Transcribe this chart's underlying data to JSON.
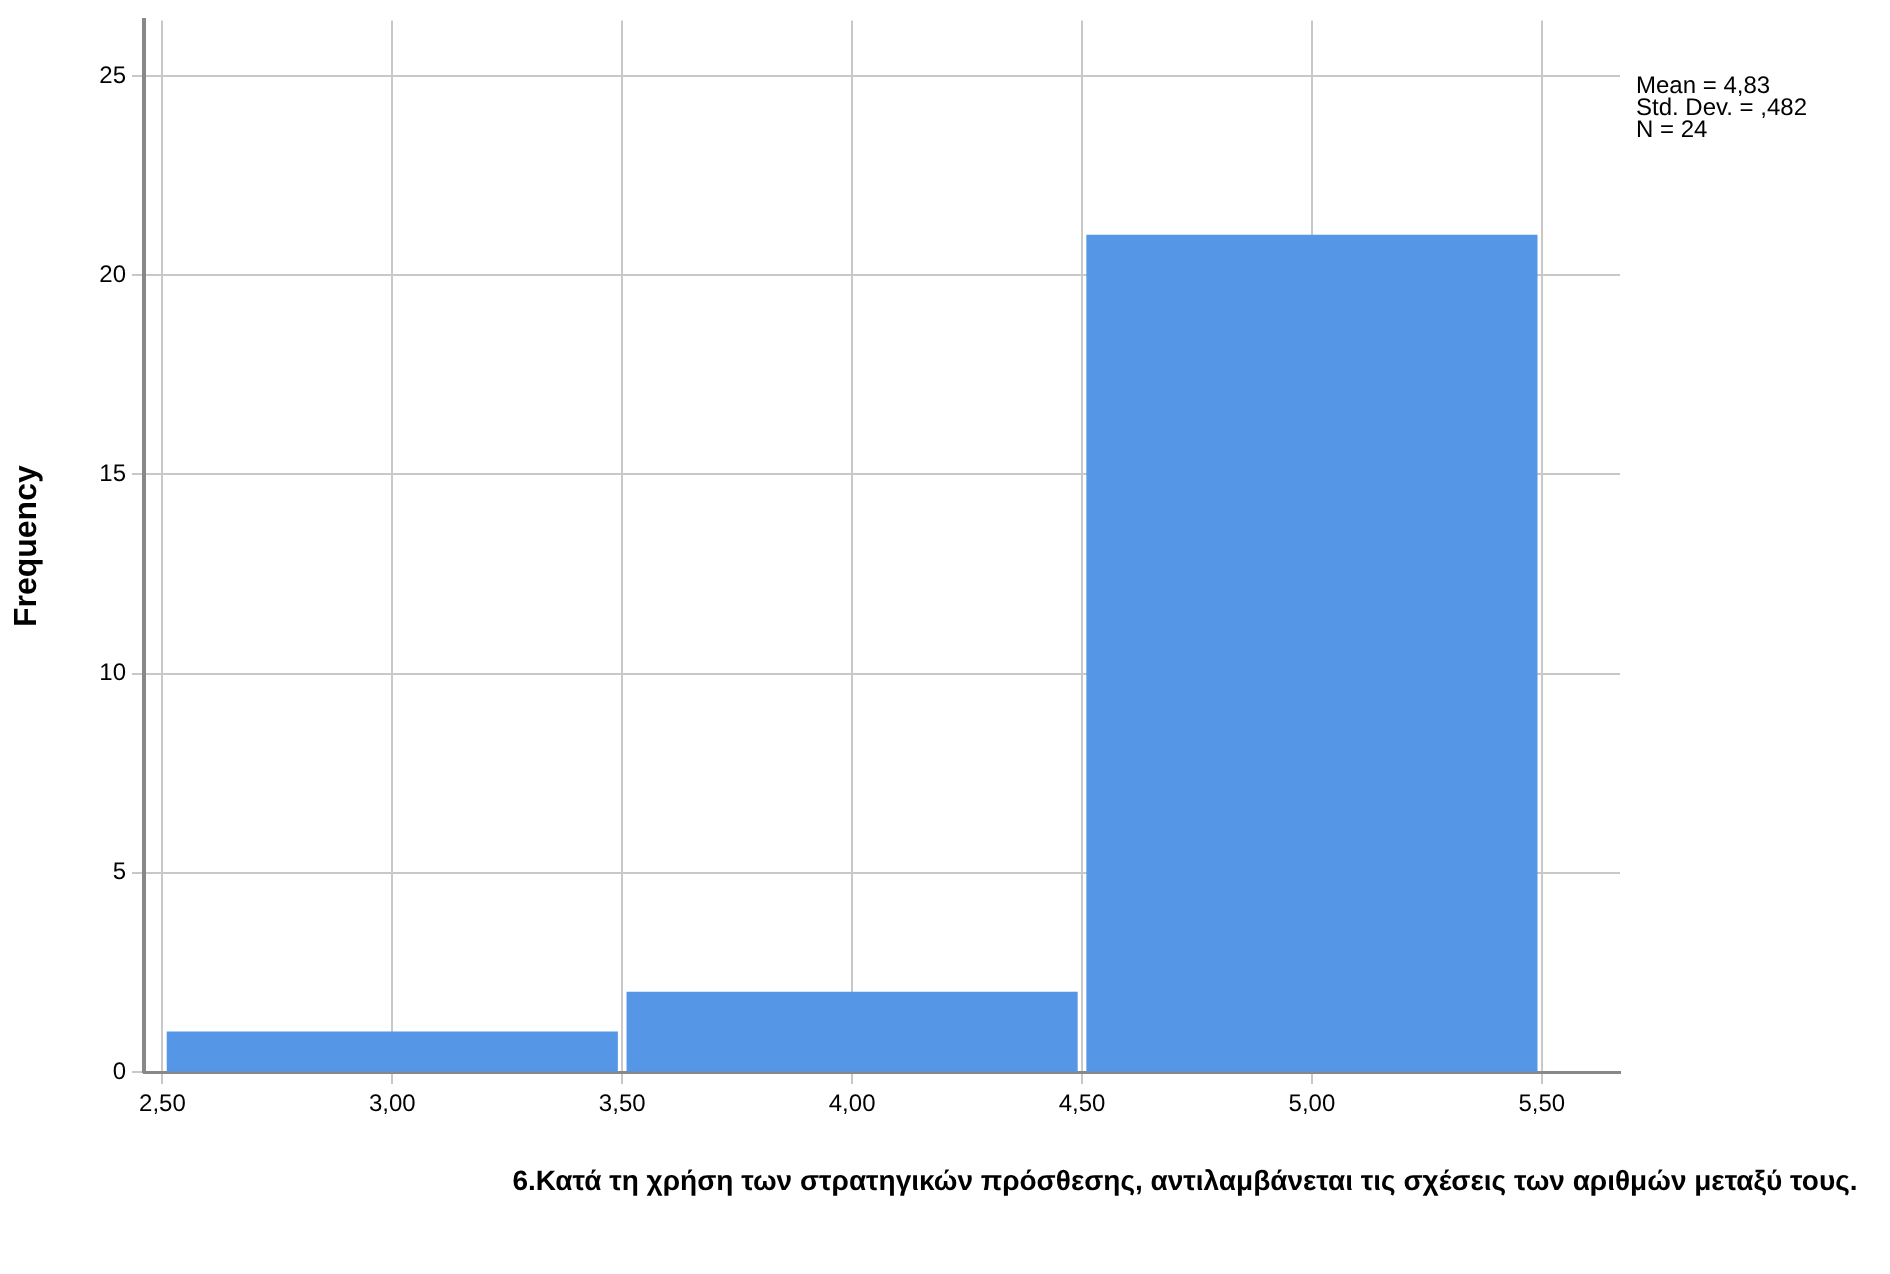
{
  "chart_data": {
    "type": "histogram",
    "xlabel": "6.Κατά τη χρήση των στρατηγικών πρόσθεσης, αντιλαμβάνεται τις σχέσεις των αριθμών μεταξύ τους.",
    "ylabel": "Frequency",
    "bins": [
      2.5,
      3.5,
      4.5,
      5.5
    ],
    "values": [
      1,
      2,
      21
    ],
    "color": "#5596e6",
    "xlim": [
      2.46,
      5.67
    ],
    "xticks": [
      {
        "value": 2.5,
        "label": "2,50"
      },
      {
        "value": 3.0,
        "label": "3,00"
      },
      {
        "value": 3.5,
        "label": "3,50"
      },
      {
        "value": 4.0,
        "label": "4,00"
      },
      {
        "value": 4.5,
        "label": "4,50"
      },
      {
        "value": 5.0,
        "label": "5,00"
      },
      {
        "value": 5.5,
        "label": "5,50"
      }
    ],
    "ylim": [
      0,
      26.4
    ],
    "yticks": [
      0,
      5,
      10,
      15,
      20,
      25
    ],
    "annotations": [
      "Mean = 4,83",
      "Std. Dev. = ,482",
      "N = 24"
    ],
    "grid": true,
    "legend": false
  }
}
